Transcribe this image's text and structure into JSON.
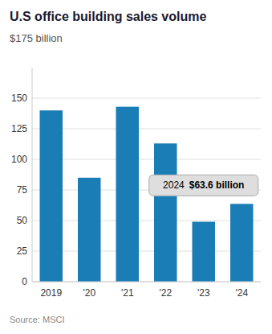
{
  "chart_data": {
    "type": "bar",
    "title": "U.S office building sales volume",
    "subtitle": "$175 billion",
    "source": "Source: MSCI",
    "categories": [
      "2019",
      "'20",
      "'21",
      "'22",
      "'23",
      "'24"
    ],
    "values": [
      140,
      85,
      143,
      113,
      49,
      63.6
    ],
    "color": "#1a7db5",
    "ylim": [
      0,
      175
    ],
    "yticks": [
      0,
      25,
      50,
      75,
      100,
      125,
      150
    ],
    "grid": true,
    "annotations": [
      "2024",
      "$63.6 billion"
    ]
  }
}
